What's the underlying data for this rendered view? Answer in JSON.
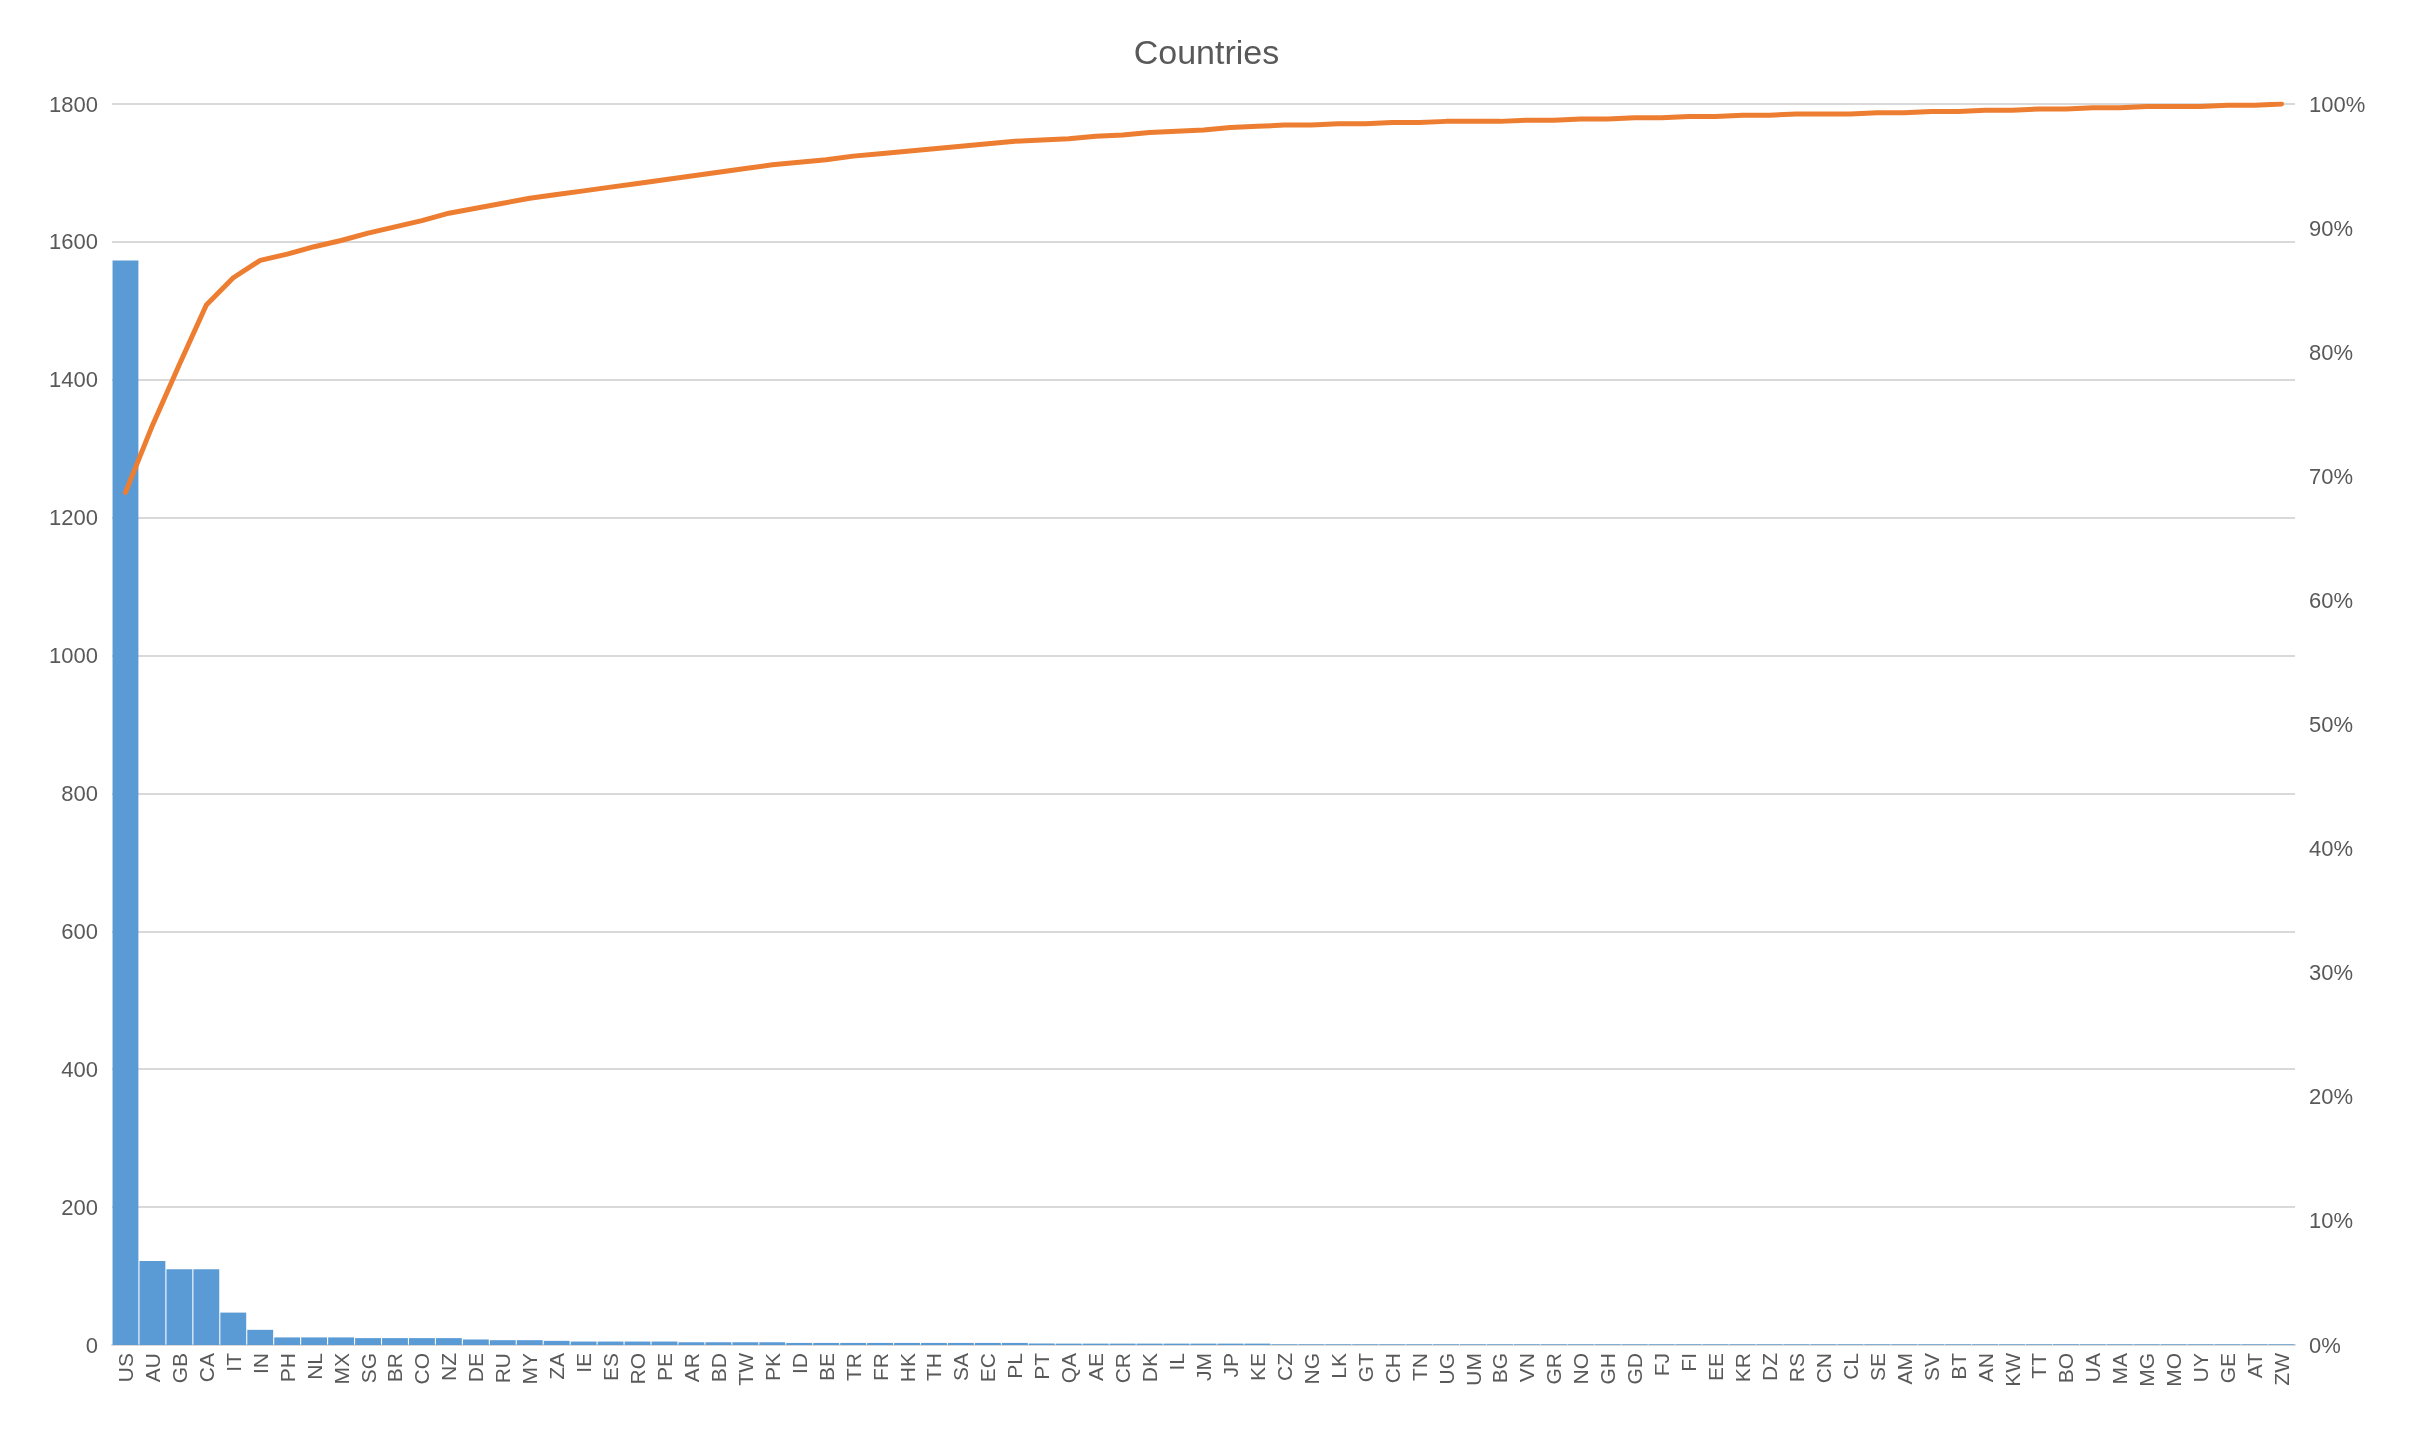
{
  "chart_data": {
    "type": "bar",
    "title": "Countries",
    "categories": [
      "US",
      "AU",
      "GB",
      "CA",
      "IT",
      "IN",
      "PH",
      "NL",
      "MX",
      "SG",
      "BR",
      "CO",
      "NZ",
      "DE",
      "RU",
      "MY",
      "ZA",
      "IE",
      "ES",
      "RO",
      "PE",
      "AR",
      "BD",
      "TW",
      "PK",
      "ID",
      "BE",
      "TR",
      "FR",
      "HK",
      "TH",
      "SA",
      "EC",
      "PL",
      "PT",
      "QA",
      "AE",
      "CR",
      "DK",
      "IL",
      "JM",
      "JP",
      "KE",
      "CZ",
      "NG",
      "LK",
      "GT",
      "CH",
      "TN",
      "UG",
      "UM",
      "BG",
      "VN",
      "GR",
      "NO",
      "GH",
      "GD",
      "FJ",
      "FI",
      "EE",
      "KR",
      "DZ",
      "RS",
      "CN",
      "CL",
      "SE",
      "AM",
      "SV",
      "BT",
      "AN",
      "KW",
      "TT",
      "BO",
      "UA",
      "MA",
      "MG",
      "MO",
      "UY",
      "GE",
      "AT",
      "ZW"
    ],
    "series": [
      {
        "color": "#5b9bd5",
        "values": [
          1573,
          122,
          110,
          110,
          47,
          22,
          11,
          11,
          11,
          10,
          10,
          10,
          10,
          8,
          7,
          7,
          6,
          5,
          5,
          5,
          5,
          4,
          4,
          4,
          4,
          3,
          3,
          3,
          3,
          3,
          3,
          3,
          3,
          3,
          2,
          2,
          2,
          2,
          2,
          2,
          2,
          2,
          2,
          1,
          1,
          1,
          1,
          1,
          1,
          1,
          1,
          1,
          1,
          1,
          1,
          1,
          1,
          1,
          1,
          1,
          1,
          1,
          1,
          1,
          1,
          1,
          1,
          1,
          1,
          1,
          1,
          1,
          1,
          1,
          1,
          1,
          1,
          1,
          1,
          1,
          1
        ]
      },
      {
        "type": "line",
        "axis": "y2",
        "color": "#ed7d31",
        "values": [
          68.7,
          74.1,
          79.0,
          83.8,
          86.0,
          87.4,
          87.9,
          88.5,
          89.0,
          89.6,
          90.1,
          90.6,
          91.2,
          91.6,
          92.0,
          92.4,
          92.7,
          93.0,
          93.3,
          93.6,
          93.9,
          94.2,
          94.5,
          94.8,
          95.1,
          95.3,
          95.5,
          95.8,
          96.0,
          96.2,
          96.4,
          96.6,
          96.8,
          97.0,
          97.1,
          97.2,
          97.4,
          97.5,
          97.7,
          97.8,
          97.9,
          98.1,
          98.2,
          98.3,
          98.3,
          98.4,
          98.4,
          98.5,
          98.5,
          98.6,
          98.6,
          98.6,
          98.7,
          98.7,
          98.8,
          98.8,
          98.9,
          98.9,
          99.0,
          99.0,
          99.1,
          99.1,
          99.2,
          99.2,
          99.2,
          99.3,
          99.3,
          99.4,
          99.4,
          99.5,
          99.5,
          99.6,
          99.6,
          99.7,
          99.7,
          99.8,
          99.8,
          99.8,
          99.9,
          99.9,
          100
        ]
      }
    ],
    "ylim": [
      0,
      1800
    ],
    "yticks": [
      0,
      200,
      400,
      600,
      800,
      1000,
      1200,
      1400,
      1600,
      1800
    ],
    "y2lim": [
      0,
      100
    ],
    "y2ticks": [
      {
        "value": 0,
        "label": "0%"
      },
      {
        "value": 10,
        "label": "10%"
      },
      {
        "value": 20,
        "label": "20%"
      },
      {
        "value": 30,
        "label": "30%"
      },
      {
        "value": 40,
        "label": "40%"
      },
      {
        "value": 50,
        "label": "50%"
      },
      {
        "value": 60,
        "label": "60%"
      },
      {
        "value": 70,
        "label": "70%"
      },
      {
        "value": 80,
        "label": "80%"
      },
      {
        "value": 90,
        "label": "90%"
      },
      {
        "value": 100,
        "label": "100%"
      }
    ],
    "grid": "y",
    "marker": "none",
    "line_style": "solid"
  }
}
